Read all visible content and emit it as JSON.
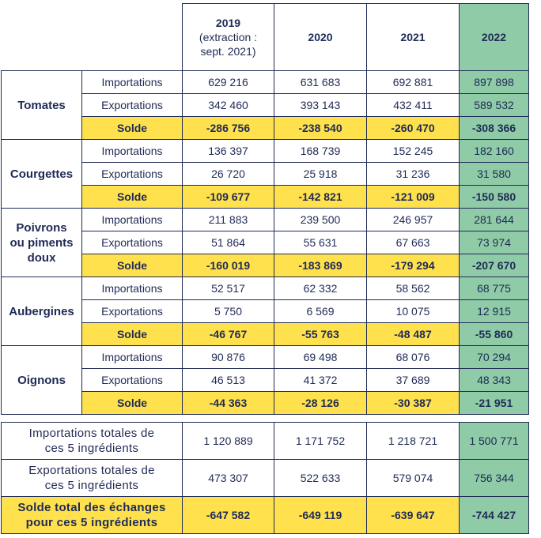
{
  "years": [
    {
      "year": "2019",
      "sub1": "(extraction :",
      "sub2": "sept. 2021)"
    },
    {
      "year": "2020"
    },
    {
      "year": "2021"
    },
    {
      "year": "2022"
    }
  ],
  "labels": {
    "imp": "Importations",
    "exp": "Exportations",
    "solde": "Solde"
  },
  "products": [
    {
      "name_lines": [
        "Tomates"
      ],
      "imp": [
        "629 216",
        "631 683",
        "692 881",
        "897 898"
      ],
      "exp": [
        "342 460",
        "393 143",
        "432 411",
        "589 532"
      ],
      "solde": [
        "-286 756",
        "-238 540",
        "-260 470",
        "-308 366"
      ]
    },
    {
      "name_lines": [
        "Courgettes"
      ],
      "imp": [
        "136 397",
        "168 739",
        "152 245",
        "182 160"
      ],
      "exp": [
        "26 720",
        "25 918",
        "31 236",
        "31 580"
      ],
      "solde": [
        "-109 677",
        "-142 821",
        "-121 009",
        "-150 580"
      ]
    },
    {
      "name_lines": [
        "Poivrons",
        "ou piments",
        "doux"
      ],
      "imp": [
        "211 883",
        "239 500",
        "246 957",
        "281 644"
      ],
      "exp": [
        "51 864",
        "55 631",
        "67 663",
        "73 974"
      ],
      "solde": [
        "-160 019",
        "-183 869",
        "-179 294",
        "-207 670"
      ]
    },
    {
      "name_lines": [
        "Aubergines"
      ],
      "imp": [
        "52 517",
        "62 332",
        "58 562",
        "68 775"
      ],
      "exp": [
        "5 750",
        "6 569",
        "10 075",
        "12 915"
      ],
      "solde": [
        "-46 767",
        "-55 763",
        "-48 487",
        "-55 860"
      ]
    },
    {
      "name_lines": [
        "Oignons"
      ],
      "imp": [
        "90 876",
        "69 498",
        "68 076",
        "70 294"
      ],
      "exp": [
        "46 513",
        "41 372",
        "37 689",
        "48 343"
      ],
      "solde": [
        "-44 363",
        "-28 126",
        "-30 387",
        "-21 951"
      ]
    }
  ],
  "totals": [
    {
      "label_lines": [
        "Importations totales de",
        "ces 5 ingrédients"
      ],
      "values": [
        "1 120 889",
        "1 171 752",
        "1 218 721",
        "1 500 771"
      ]
    },
    {
      "label_lines": [
        "Exportations totales de",
        "ces 5 ingrédients"
      ],
      "values": [
        "473 307",
        "522 633",
        "579 074",
        "756 344"
      ]
    },
    {
      "label_lines": [
        "Solde total des échanges",
        "pour ces 5 ingrédients"
      ],
      "values": [
        "-647 582",
        "-649 119",
        "-639 647",
        "-744 427"
      ]
    }
  ],
  "colors": {
    "highlight_yellow": "#ffe14d",
    "highlight_green": "#8fcba7",
    "text_navy": "#1f2a55"
  }
}
